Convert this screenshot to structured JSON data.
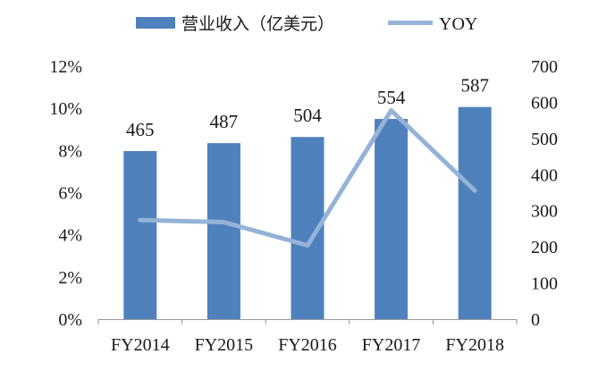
{
  "chart_data": {
    "type": "bar+line",
    "categories": [
      "FY2014",
      "FY2015",
      "FY2016",
      "FY2017",
      "FY2018"
    ],
    "series": [
      {
        "name": "营业收入（亿美元）",
        "type": "bar",
        "axis": "right",
        "values": [
          465,
          487,
          504,
          554,
          587
        ],
        "data_labels": [
          "465",
          "487",
          "504",
          "554",
          "587"
        ],
        "color": "#4f81bd"
      },
      {
        "name": "YOY",
        "type": "line",
        "axis": "left",
        "values": [
          4.7,
          4.6,
          3.5,
          9.9,
          6.1
        ],
        "color": "#95b3d7"
      }
    ],
    "left_axis": {
      "range": [
        0,
        12
      ],
      "ticks": [
        0,
        2,
        4,
        6,
        8,
        10,
        12
      ],
      "tick_labels": [
        "0%",
        "2%",
        "4%",
        "6%",
        "8%",
        "10%",
        "12%"
      ]
    },
    "right_axis": {
      "range": [
        0,
        700
      ],
      "ticks": [
        0,
        100,
        200,
        300,
        400,
        500,
        600,
        700
      ],
      "tick_labels": [
        "0",
        "100",
        "200",
        "300",
        "400",
        "500",
        "600",
        "700"
      ]
    },
    "grid": false,
    "legend_position": "top"
  }
}
